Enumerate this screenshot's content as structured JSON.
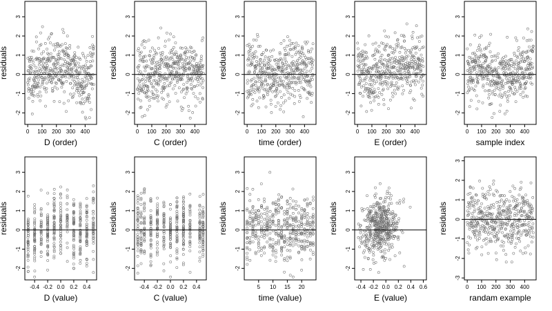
{
  "chart_data": [
    {
      "type": "scatter",
      "title": "",
      "xlabel": "D (order)",
      "ylabel": "residuals",
      "xlim": [
        -20,
        480
      ],
      "ylim": [
        -2.6,
        3.8
      ],
      "xticks": [
        0,
        100,
        200,
        300,
        400
      ],
      "yticks": [
        -2,
        -1,
        0,
        1,
        2,
        3
      ],
      "hline": 0,
      "n": 460,
      "seed": 11,
      "pattern": "order-wave",
      "x": [
        0,
        100,
        200,
        300,
        400,
        460
      ],
      "y": [
        -0.2,
        0.3,
        0.4,
        0.3,
        -0.4,
        0.2
      ]
    },
    {
      "type": "scatter",
      "title": "",
      "xlabel": "C (order)",
      "ylabel": "residuals",
      "xlim": [
        -20,
        480
      ],
      "ylim": [
        -2.6,
        3.8
      ],
      "xticks": [
        0,
        100,
        200,
        300,
        400
      ],
      "yticks": [
        -2,
        -1,
        0,
        1,
        2,
        3
      ],
      "hline": 0,
      "n": 460,
      "seed": 23,
      "pattern": "order",
      "x": [
        0,
        100,
        200,
        300,
        400,
        460
      ],
      "y": [
        0.1,
        -0.3,
        0.1,
        0.3,
        0.0,
        0.1
      ]
    },
    {
      "type": "scatter",
      "title": "",
      "xlabel": "time (order)",
      "ylabel": "residuals",
      "xlim": [
        -20,
        480
      ],
      "ylim": [
        -2.6,
        3.8
      ],
      "xticks": [
        0,
        100,
        200,
        300,
        400
      ],
      "yticks": [
        -2,
        -1,
        0,
        1,
        2,
        3
      ],
      "hline": 0,
      "n": 460,
      "seed": 37,
      "pattern": "order",
      "x": [
        0,
        100,
        200,
        300,
        400,
        460
      ],
      "y": [
        0.0,
        0.2,
        -0.2,
        0.1,
        0.3,
        0.0
      ]
    },
    {
      "type": "scatter",
      "title": "",
      "xlabel": "E (order)",
      "ylabel": "residuals",
      "xlim": [
        -20,
        480
      ],
      "ylim": [
        -2.6,
        3.8
      ],
      "xticks": [
        0,
        100,
        200,
        300,
        400
      ],
      "yticks": [
        -2,
        -1,
        0,
        1,
        2,
        3
      ],
      "hline": 0,
      "n": 460,
      "seed": 41,
      "pattern": "order",
      "x": [
        0,
        100,
        200,
        300,
        400,
        460
      ],
      "y": [
        0.3,
        0.0,
        0.2,
        0.4,
        0.6,
        0.2
      ]
    },
    {
      "type": "scatter",
      "title": "",
      "xlabel": "sample index",
      "ylabel": "residuals",
      "xlim": [
        -20,
        480
      ],
      "ylim": [
        -2.6,
        3.8
      ],
      "xticks": [
        0,
        100,
        200,
        300,
        400
      ],
      "yticks": [
        -2,
        -1,
        0,
        1,
        2,
        3
      ],
      "hline": 0,
      "n": 460,
      "seed": 53,
      "pattern": "order",
      "x": [
        0,
        100,
        200,
        300,
        400,
        460
      ],
      "y": [
        0.2,
        0.4,
        -0.1,
        -0.3,
        0.3,
        0.6
      ]
    },
    {
      "type": "scatter",
      "title": "",
      "xlabel": "D (value)",
      "ylabel": "residuals",
      "xlim": [
        -0.55,
        0.55
      ],
      "ylim": [
        -2.6,
        3.8
      ],
      "xticks": [
        -0.4,
        -0.2,
        0.0,
        0.2,
        0.4
      ],
      "yticks": [
        -2,
        -1,
        0,
        1,
        2,
        3
      ],
      "hline": 0,
      "n": 460,
      "seed": 61,
      "pattern": "discrete",
      "x": [
        -0.5,
        -0.4,
        -0.3,
        -0.2,
        -0.1,
        0.0,
        0.1,
        0.2,
        0.3,
        0.4,
        0.5
      ],
      "y": [
        -0.5,
        -0.3,
        0.0,
        -0.2,
        0.3,
        0.4,
        0.5,
        0.0,
        -0.2,
        0.0,
        0.3
      ]
    },
    {
      "type": "scatter",
      "title": "",
      "xlabel": "C (value)",
      "ylabel": "residuals",
      "xlim": [
        -0.55,
        0.55
      ],
      "ylim": [
        -2.6,
        3.8
      ],
      "xticks": [
        -0.4,
        -0.2,
        0.0,
        0.2,
        0.4
      ],
      "yticks": [
        -2,
        -1,
        0,
        1,
        2,
        3
      ],
      "hline": 0,
      "n": 460,
      "seed": 71,
      "pattern": "discrete",
      "x": [
        -0.5,
        -0.45,
        -0.4,
        -0.3,
        -0.2,
        -0.1,
        0.0,
        0.1,
        0.2,
        0.3,
        0.45,
        0.5
      ],
      "y": [
        0.0,
        0.0,
        0.1,
        0.0,
        0.1,
        0.2,
        0.0,
        0.1,
        0.0,
        0.1,
        0.0,
        -0.1
      ]
    },
    {
      "type": "scatter",
      "title": "",
      "xlabel": "time (value)",
      "ylabel": "residuals",
      "xlim": [
        0,
        25
      ],
      "ylim": [
        -2.6,
        3.8
      ],
      "xticks": [
        5,
        10,
        15,
        20
      ],
      "yticks": [
        -2,
        -1,
        0,
        1,
        2,
        3
      ],
      "hline": 0,
      "n": 460,
      "seed": 83,
      "pattern": "discrete",
      "x": [
        1,
        2,
        3,
        4,
        5,
        6,
        7,
        8,
        9,
        10,
        11,
        12,
        13,
        14,
        15,
        16,
        17,
        18,
        19,
        20,
        21,
        22,
        23,
        24
      ],
      "y": [
        0.0,
        0.2,
        0.1,
        0.0,
        0.1,
        0.3,
        0.0,
        0.2,
        0.1,
        0.0,
        0.2,
        0.2,
        0.0,
        0.1,
        0.2,
        0.0,
        0.1,
        0.2,
        0.0,
        0.1,
        0.2,
        0.0,
        0.1,
        0.1
      ]
    },
    {
      "type": "scatter",
      "title": "",
      "xlabel": "E (value)",
      "ylabel": "residuals",
      "xlim": [
        -0.5,
        0.65
      ],
      "ylim": [
        -2.6,
        3.8
      ],
      "xticks": [
        -0.4,
        -0.2,
        0.0,
        0.2,
        0.4,
        0.6
      ],
      "yticks": [
        -2,
        -1,
        0,
        1,
        2,
        3
      ],
      "hline": 0,
      "n": 460,
      "seed": 97,
      "pattern": "cluster",
      "x": [
        -0.45,
        -0.3,
        -0.15,
        0.0,
        0.15,
        0.3,
        0.45,
        0.6
      ],
      "y": [
        -0.3,
        0.0,
        0.1,
        0.3,
        0.2,
        0.0,
        0.2,
        0.4
      ]
    },
    {
      "type": "scatter",
      "title": "",
      "xlabel": "randam example",
      "ylabel": "residuals",
      "xlim": [
        -20,
        480
      ],
      "ylim": [
        -3.1,
        3.2
      ],
      "xticks": [
        0,
        100,
        200,
        300,
        400
      ],
      "yticks": [
        -3,
        -2,
        -1,
        0,
        1,
        2,
        3
      ],
      "hline": 0,
      "n": 460,
      "seed": 101,
      "pattern": "order",
      "x": [
        0,
        100,
        200,
        300,
        400,
        460
      ],
      "y": [
        0.0,
        0.1,
        -0.1,
        0.0,
        0.1,
        0.0
      ]
    }
  ]
}
